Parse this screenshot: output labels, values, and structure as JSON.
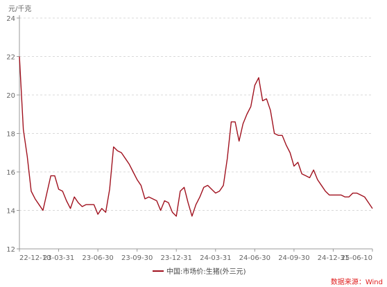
{
  "chart_data": {
    "type": "line",
    "unit_label": "元/千克",
    "ylim": [
      12,
      24
    ],
    "y_ticks": [
      12,
      14,
      16,
      18,
      20,
      22,
      24
    ],
    "x_tick_labels": [
      "22-12-10",
      "23-03-31",
      "23-06-30",
      "23-09-30",
      "23-12-31",
      "24-03-31",
      "24-06-30",
      "24-09-30",
      "24-12-31",
      "25-06-10"
    ],
    "grid": "horizontal-dashed",
    "legend_position": "bottom-center",
    "series": [
      {
        "name": "中国:市场价:生猪(外三元)",
        "color": "#a0111e",
        "values": [
          22.0,
          18.2,
          16.8,
          15.0,
          14.6,
          14.3,
          14.0,
          14.9,
          15.8,
          15.8,
          15.1,
          15.0,
          14.5,
          14.1,
          14.7,
          14.4,
          14.2,
          14.3,
          14.3,
          14.3,
          13.8,
          14.1,
          13.9,
          15.1,
          17.3,
          17.1,
          17.0,
          16.7,
          16.4,
          16.0,
          15.6,
          15.3,
          14.6,
          14.7,
          14.6,
          14.5,
          14.0,
          14.5,
          14.4,
          13.9,
          13.7,
          15.0,
          15.2,
          14.4,
          13.7,
          14.3,
          14.7,
          15.2,
          15.3,
          15.1,
          14.9,
          15.0,
          15.3,
          16.7,
          18.6,
          18.6,
          17.6,
          18.5,
          19.0,
          19.4,
          20.5,
          20.9,
          19.7,
          19.8,
          19.2,
          18.0,
          17.9,
          17.9,
          17.4,
          17.0,
          16.3,
          16.5,
          15.9,
          15.8,
          15.7,
          16.1,
          15.6,
          15.3,
          15.0,
          14.8,
          14.8,
          14.8,
          14.8,
          14.7,
          14.7,
          14.9,
          14.9,
          14.8,
          14.7,
          14.4,
          14.1
        ]
      }
    ]
  },
  "source_text": "数据来源：Wind",
  "colors": {
    "source": "#e02020",
    "grid": "#d9d9d9",
    "axis": "#999999"
  }
}
